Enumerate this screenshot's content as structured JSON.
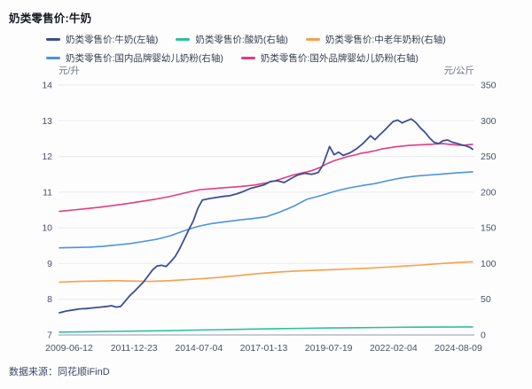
{
  "header": {
    "title": "奶类零售价:牛奶"
  },
  "source": {
    "label": "数据来源：同花顺iFinD"
  },
  "colors": {
    "milk": "#3D4E94",
    "yogurt": "#2CC0A0",
    "midage_powder": "#F6A04A",
    "domestic_formula": "#4B93DD",
    "foreign_formula": "#E33C7F",
    "grid": "#e9ebf1",
    "axis_line": "#b5bac6",
    "tick_text": "#4a5161"
  },
  "chart_data": {
    "type": "line",
    "title": "奶类零售价:牛奶",
    "legend_position": "top",
    "grid": "horizontal",
    "left_axis": {
      "unit": "元/升",
      "min": 7,
      "max": 14,
      "step": 1,
      "tick_labels": [
        "14",
        "13",
        "12",
        "11",
        "10",
        "9",
        "8",
        "7"
      ]
    },
    "right_axis": {
      "unit": "元/公斤",
      "min": 0,
      "max": 350,
      "step": 50,
      "tick_labels": [
        "350",
        "300",
        "250",
        "200",
        "150",
        "100",
        "50",
        "0"
      ]
    },
    "x_axis": {
      "type": "time",
      "start": "2009-06",
      "end": "2024-08",
      "tick_labels": [
        "2009-06-12",
        "2011-12-23",
        "2014-07-04",
        "2017-01-13",
        "2019-07-19",
        "2022-02-04",
        "2024-08-09"
      ]
    },
    "series": [
      {
        "name": "奶类零售价:牛奶(左轴)",
        "axis": "left",
        "color": "#3D4E94",
        "points": [
          [
            "2009-06",
            7.62
          ],
          [
            "2009-09",
            7.67
          ],
          [
            "2009-12",
            7.7
          ],
          [
            "2010-03",
            7.73
          ],
          [
            "2010-06",
            7.74
          ],
          [
            "2010-09",
            7.76
          ],
          [
            "2010-12",
            7.78
          ],
          [
            "2011-03",
            7.8
          ],
          [
            "2011-05",
            7.82
          ],
          [
            "2011-07",
            7.78
          ],
          [
            "2011-09",
            7.8
          ],
          [
            "2011-11",
            7.95
          ],
          [
            "2012-01",
            8.1
          ],
          [
            "2012-03",
            8.22
          ],
          [
            "2012-05",
            8.35
          ],
          [
            "2012-07",
            8.48
          ],
          [
            "2012-09",
            8.65
          ],
          [
            "2012-11",
            8.82
          ],
          [
            "2013-01",
            8.93
          ],
          [
            "2013-03",
            8.95
          ],
          [
            "2013-05",
            8.92
          ],
          [
            "2013-07",
            9.05
          ],
          [
            "2013-09",
            9.2
          ],
          [
            "2013-11",
            9.42
          ],
          [
            "2014-01",
            9.68
          ],
          [
            "2014-03",
            9.95
          ],
          [
            "2014-05",
            10.2
          ],
          [
            "2014-07",
            10.55
          ],
          [
            "2014-09",
            10.78
          ],
          [
            "2014-12",
            10.82
          ],
          [
            "2015-03",
            10.85
          ],
          [
            "2015-06",
            10.88
          ],
          [
            "2015-09",
            10.9
          ],
          [
            "2015-12",
            10.95
          ],
          [
            "2016-03",
            11.02
          ],
          [
            "2016-06",
            11.1
          ],
          [
            "2016-09",
            11.15
          ],
          [
            "2016-12",
            11.2
          ],
          [
            "2017-03",
            11.3
          ],
          [
            "2017-06",
            11.32
          ],
          [
            "2017-09",
            11.27
          ],
          [
            "2017-12",
            11.38
          ],
          [
            "2018-03",
            11.48
          ],
          [
            "2018-06",
            11.53
          ],
          [
            "2018-09",
            11.5
          ],
          [
            "2018-12",
            11.55
          ],
          [
            "2019-02",
            11.75
          ],
          [
            "2019-04",
            12.1
          ],
          [
            "2019-05",
            12.28
          ],
          [
            "2019-07",
            12.05
          ],
          [
            "2019-09",
            12.12
          ],
          [
            "2019-11",
            12.03
          ],
          [
            "2020-02",
            12.1
          ],
          [
            "2020-05",
            12.22
          ],
          [
            "2020-08",
            12.38
          ],
          [
            "2020-11",
            12.58
          ],
          [
            "2021-01",
            12.47
          ],
          [
            "2021-03",
            12.6
          ],
          [
            "2021-05",
            12.72
          ],
          [
            "2021-07",
            12.85
          ],
          [
            "2021-09",
            12.98
          ],
          [
            "2021-11",
            13.02
          ],
          [
            "2022-01",
            12.94
          ],
          [
            "2022-03",
            13.0
          ],
          [
            "2022-05",
            13.05
          ],
          [
            "2022-07",
            12.95
          ],
          [
            "2022-09",
            12.8
          ],
          [
            "2022-11",
            12.68
          ],
          [
            "2023-01",
            12.52
          ],
          [
            "2023-03",
            12.4
          ],
          [
            "2023-05",
            12.36
          ],
          [
            "2023-07",
            12.44
          ],
          [
            "2023-09",
            12.46
          ],
          [
            "2023-11",
            12.4
          ],
          [
            "2024-01",
            12.37
          ],
          [
            "2024-03",
            12.33
          ],
          [
            "2024-05",
            12.3
          ],
          [
            "2024-07",
            12.25
          ],
          [
            "2024-08",
            12.2
          ]
        ]
      },
      {
        "name": "奶类零售价:酸奶(右轴)",
        "axis": "right",
        "color": "#2CC0A0",
        "points": [
          [
            "2009-06",
            4.0
          ],
          [
            "2010-06",
            4.5
          ],
          [
            "2011-06",
            5.0
          ],
          [
            "2012-06",
            5.5
          ],
          [
            "2013-06",
            6.0
          ],
          [
            "2014-06",
            6.8
          ],
          [
            "2015-06",
            7.5
          ],
          [
            "2016-06",
            8.2
          ],
          [
            "2017-06",
            8.8
          ],
          [
            "2018-06",
            9.3
          ],
          [
            "2019-06",
            9.8
          ],
          [
            "2020-06",
            10.2
          ],
          [
            "2021-06",
            10.6
          ],
          [
            "2022-06",
            10.9
          ],
          [
            "2023-06",
            11.1
          ],
          [
            "2024-08",
            11.3
          ]
        ]
      },
      {
        "name": "奶类零售价:中老年奶粉(右轴)",
        "axis": "right",
        "color": "#F6A04A",
        "points": [
          [
            "2009-06",
            74
          ],
          [
            "2010-02",
            75
          ],
          [
            "2010-10",
            75.5
          ],
          [
            "2011-06",
            76
          ],
          [
            "2012-02",
            75.5
          ],
          [
            "2012-10",
            75
          ],
          [
            "2013-06",
            76
          ],
          [
            "2014-02",
            77.5
          ],
          [
            "2014-10",
            79
          ],
          [
            "2015-06",
            81
          ],
          [
            "2016-02",
            83.5
          ],
          [
            "2016-10",
            86
          ],
          [
            "2017-06",
            88
          ],
          [
            "2018-02",
            89.5
          ],
          [
            "2018-10",
            90.5
          ],
          [
            "2019-06",
            91.5
          ],
          [
            "2020-02",
            92.5
          ],
          [
            "2020-10",
            93.5
          ],
          [
            "2021-06",
            95
          ],
          [
            "2022-02",
            96.5
          ],
          [
            "2022-10",
            98
          ],
          [
            "2023-06",
            100
          ],
          [
            "2024-02",
            101.5
          ],
          [
            "2024-08",
            102.5
          ]
        ]
      },
      {
        "name": "奶类零售价:国内品牌婴幼儿奶粉(右轴)",
        "axis": "right",
        "color": "#4B93DD",
        "points": [
          [
            "2009-06",
            122
          ],
          [
            "2010-01",
            122.5
          ],
          [
            "2010-07",
            123
          ],
          [
            "2011-01",
            124
          ],
          [
            "2011-07",
            126
          ],
          [
            "2012-01",
            128
          ],
          [
            "2012-07",
            131
          ],
          [
            "2013-01",
            134
          ],
          [
            "2013-07",
            139
          ],
          [
            "2014-01",
            146
          ],
          [
            "2014-07",
            152
          ],
          [
            "2015-01",
            156
          ],
          [
            "2015-07",
            158.5
          ],
          [
            "2016-01",
            161
          ],
          [
            "2016-07",
            163
          ],
          [
            "2017-01",
            165.5
          ],
          [
            "2017-07",
            172
          ],
          [
            "2018-01",
            180
          ],
          [
            "2018-07",
            190
          ],
          [
            "2019-01",
            195
          ],
          [
            "2019-07",
            201
          ],
          [
            "2020-01",
            205.5
          ],
          [
            "2020-07",
            209
          ],
          [
            "2021-01",
            212
          ],
          [
            "2021-07",
            216.5
          ],
          [
            "2022-01",
            220
          ],
          [
            "2022-07",
            222.5
          ],
          [
            "2023-01",
            224
          ],
          [
            "2023-07",
            225.5
          ],
          [
            "2024-01",
            227
          ],
          [
            "2024-08",
            228.5
          ]
        ]
      },
      {
        "name": "奶类零售价:国外品牌婴幼儿奶粉(右轴)",
        "axis": "right",
        "color": "#E33C7F",
        "points": [
          [
            "2009-06",
            173
          ],
          [
            "2009-12",
            175
          ],
          [
            "2010-06",
            177
          ],
          [
            "2010-12",
            179
          ],
          [
            "2011-06",
            181.5
          ],
          [
            "2011-12",
            184
          ],
          [
            "2012-06",
            187
          ],
          [
            "2012-12",
            190
          ],
          [
            "2013-06",
            193.5
          ],
          [
            "2013-12",
            198
          ],
          [
            "2014-04",
            201
          ],
          [
            "2014-08",
            203.5
          ],
          [
            "2015-02",
            205
          ],
          [
            "2015-08",
            206.5
          ],
          [
            "2016-02",
            208
          ],
          [
            "2016-08",
            210
          ],
          [
            "2017-01",
            213
          ],
          [
            "2017-05",
            216
          ],
          [
            "2017-09",
            220
          ],
          [
            "2018-01",
            224
          ],
          [
            "2018-05",
            227
          ],
          [
            "2018-09",
            230
          ],
          [
            "2019-01",
            235
          ],
          [
            "2019-04",
            240
          ],
          [
            "2019-07",
            244
          ],
          [
            "2019-10",
            247
          ],
          [
            "2020-01",
            250
          ],
          [
            "2020-04",
            252
          ],
          [
            "2020-07",
            254.5
          ],
          [
            "2020-10",
            256
          ],
          [
            "2021-01",
            258
          ],
          [
            "2021-04",
            260.5
          ],
          [
            "2021-07",
            262
          ],
          [
            "2021-10",
            263.5
          ],
          [
            "2022-01",
            264.5
          ],
          [
            "2022-04",
            265.5
          ],
          [
            "2022-07",
            266
          ],
          [
            "2022-10",
            266.5
          ],
          [
            "2023-01",
            267
          ],
          [
            "2023-04",
            267.5
          ],
          [
            "2023-07",
            268
          ],
          [
            "2023-10",
            267
          ],
          [
            "2024-01",
            266
          ],
          [
            "2024-04",
            265.5
          ],
          [
            "2024-06",
            266.5
          ],
          [
            "2024-08",
            267
          ]
        ]
      }
    ]
  }
}
